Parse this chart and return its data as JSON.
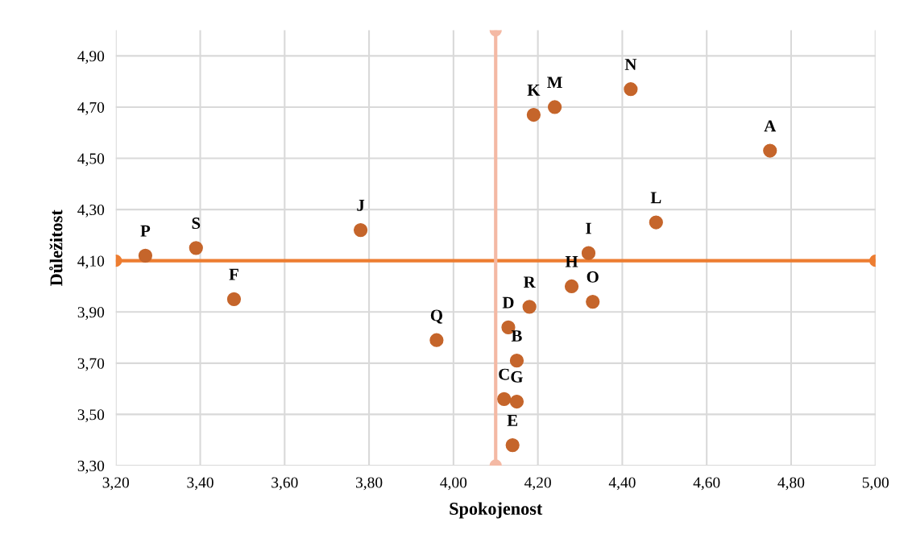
{
  "chart_data": {
    "type": "scatter",
    "xlabel": "Spokojenost",
    "ylabel": "Důležitost",
    "xlim": [
      3.2,
      5.0
    ],
    "ylim": [
      3.3,
      5.0
    ],
    "xticks": [
      {
        "value": 3.2,
        "label": "3,20"
      },
      {
        "value": 3.4,
        "label": "3,40"
      },
      {
        "value": 3.6,
        "label": "3,60"
      },
      {
        "value": 3.8,
        "label": "3,80"
      },
      {
        "value": 4.0,
        "label": "4,00"
      },
      {
        "value": 4.2,
        "label": "4,20"
      },
      {
        "value": 4.4,
        "label": "4,40"
      },
      {
        "value": 4.6,
        "label": "4,60"
      },
      {
        "value": 4.8,
        "label": "4,80"
      },
      {
        "value": 5.0,
        "label": "5,00"
      }
    ],
    "yticks": [
      {
        "value": 3.3,
        "label": "3,30"
      },
      {
        "value": 3.5,
        "label": "3,50"
      },
      {
        "value": 3.7,
        "label": "3,70"
      },
      {
        "value": 3.9,
        "label": "3,90"
      },
      {
        "value": 4.1,
        "label": "4,10"
      },
      {
        "value": 4.3,
        "label": "4,30"
      },
      {
        "value": 4.5,
        "label": "4,50"
      },
      {
        "value": 4.7,
        "label": "4,70"
      },
      {
        "value": 4.9,
        "label": "4,90"
      }
    ],
    "grid": true,
    "marker": "circle",
    "series": [
      {
        "type": "line",
        "color": "#ed7d31",
        "x": [
          3.2,
          5.0
        ],
        "values": [
          4.1,
          4.1
        ]
      },
      {
        "type": "line",
        "color": "#f4b9a4",
        "x": [
          4.1,
          4.1
        ],
        "values": [
          3.3,
          5.0
        ]
      },
      {
        "color": "#c5652b",
        "x": [
          4.75,
          4.15,
          4.12,
          4.13,
          4.14,
          3.48,
          4.15,
          4.28,
          4.32,
          3.78,
          4.19,
          4.48,
          4.24,
          4.42,
          4.33,
          3.27,
          3.96,
          4.18,
          3.39
        ],
        "values": [
          4.53,
          3.71,
          3.56,
          3.84,
          3.38,
          3.95,
          3.55,
          4.0,
          4.13,
          4.22,
          4.67,
          4.25,
          4.7,
          4.77,
          3.94,
          4.12,
          3.79,
          3.92,
          4.15
        ],
        "value_labels": [
          "A",
          "B",
          "C",
          "D",
          "E",
          "F",
          "G",
          "H",
          "I",
          "J",
          "K",
          "L",
          "M",
          "N",
          "O",
          "P",
          "Q",
          "R",
          "S"
        ]
      }
    ]
  }
}
